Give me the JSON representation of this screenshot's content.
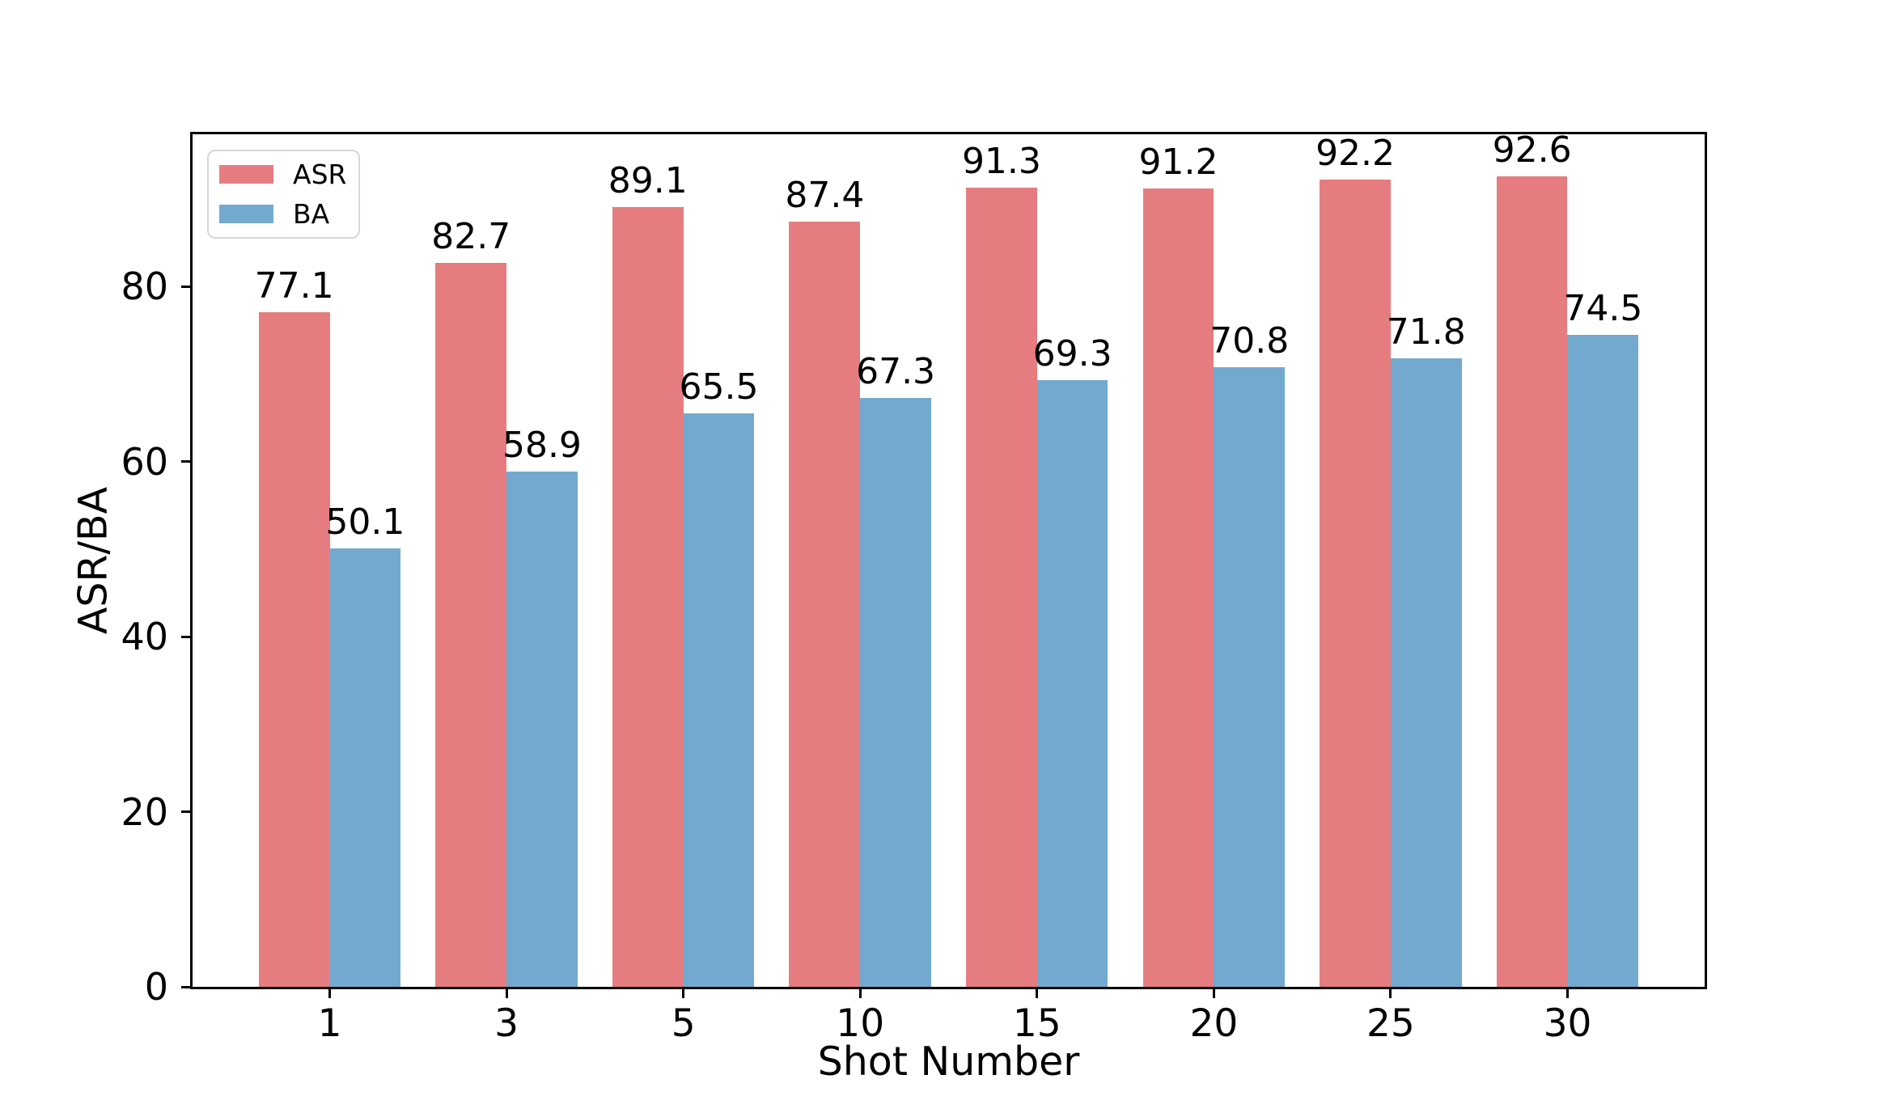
{
  "chart_data": {
    "type": "bar",
    "title": "",
    "categories": [
      "1",
      "3",
      "5",
      "10",
      "15",
      "20",
      "25",
      "30"
    ],
    "series": [
      {
        "name": "ASR",
        "color": "#e57d80",
        "values": [
          77.1,
          82.7,
          89.1,
          87.4,
          91.3,
          91.2,
          92.2,
          92.6
        ]
      },
      {
        "name": "BA",
        "color": "#74a9cf",
        "values": [
          50.1,
          58.9,
          65.5,
          67.3,
          69.3,
          70.8,
          71.8,
          74.5
        ]
      }
    ],
    "xlabel": "Shot Number",
    "ylabel": "ASR/BA",
    "ylim": [
      0,
      97.4
    ],
    "yticks": [
      0,
      20,
      40,
      60,
      80
    ],
    "bar_value_labels": true,
    "grid": false,
    "legend_position": "upper-left",
    "frame_color": "#000000",
    "background_color": "#ffffff"
  }
}
